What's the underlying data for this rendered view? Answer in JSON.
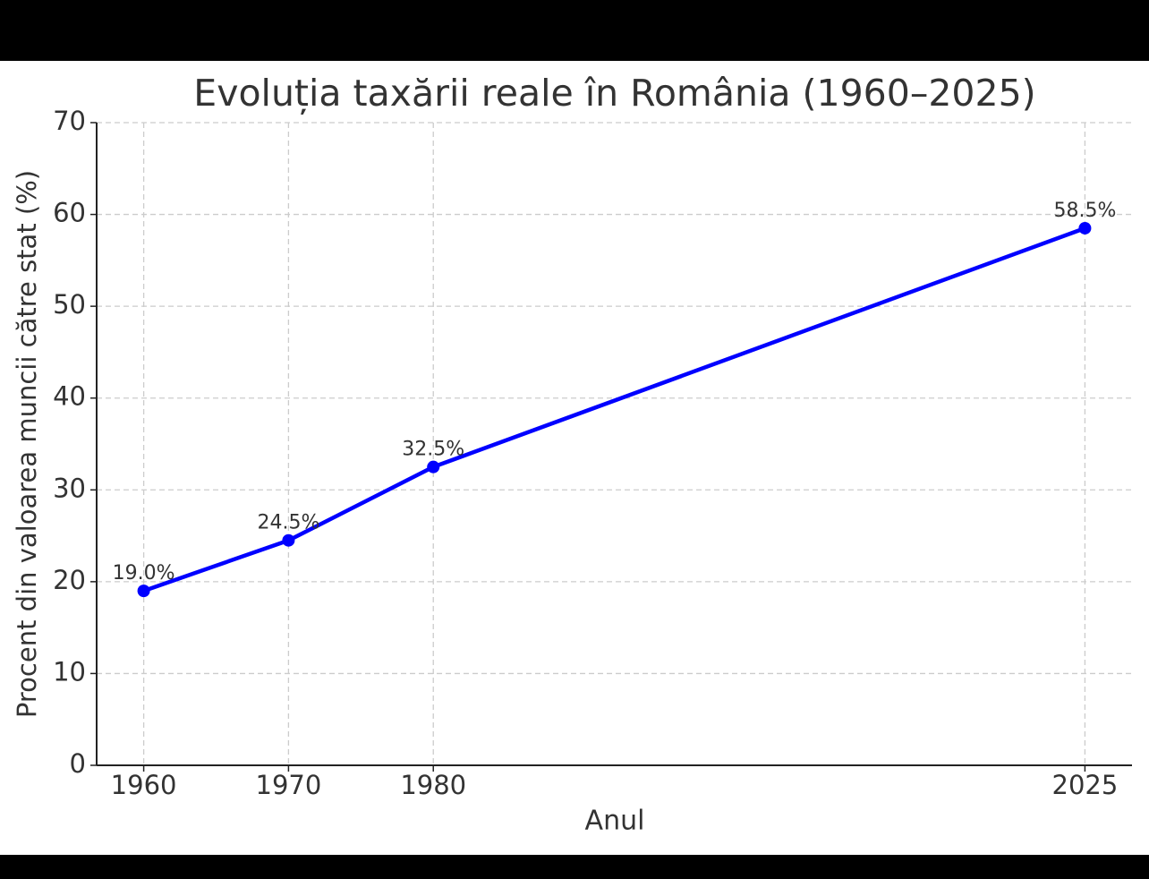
{
  "chart_data": {
    "type": "line",
    "title": "Evoluția taxării reale în România (1960–2025)",
    "xlabel": "Anul",
    "ylabel": "Procent din valoarea muncii către stat (%)",
    "x": [
      1960,
      1970,
      1980,
      2025
    ],
    "series": [
      {
        "color": "#0000ff",
        "values": [
          19.0,
          24.5,
          32.5,
          58.5
        ],
        "value_labels": [
          "19.0%",
          "24.5%",
          "32.5%",
          "58.5%"
        ]
      }
    ],
    "xlim": [
      1956.75,
      2028.25
    ],
    "xticks": [
      1960,
      1970,
      1980,
      2025
    ],
    "ylim": [
      0,
      70
    ],
    "yticks": [
      0,
      10,
      20,
      30,
      40,
      50,
      60,
      70
    ],
    "grid": true
  }
}
